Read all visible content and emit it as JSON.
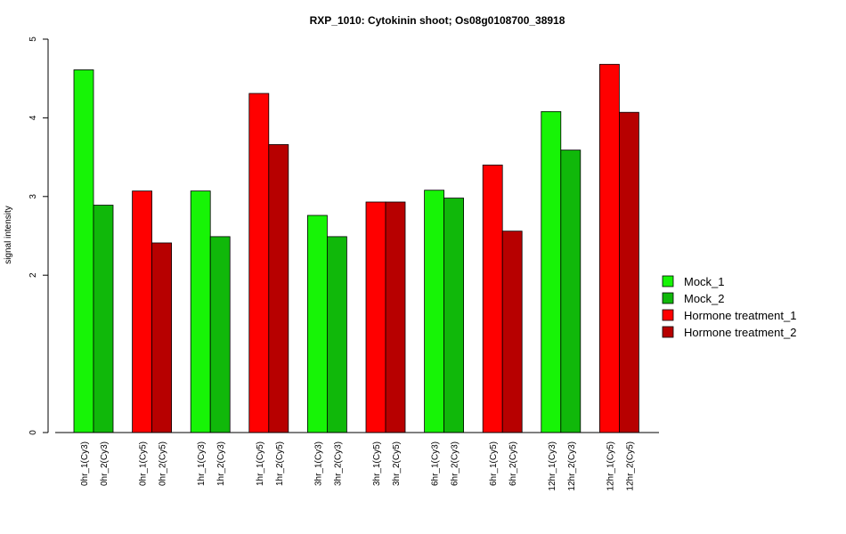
{
  "chart_data": {
    "type": "bar",
    "title": "RXP_1010: Cytokinin shoot; Os08g0108700_38918",
    "ylabel": "signal intensity",
    "xlabel": "",
    "ylim": [
      0,
      5
    ],
    "yticks": [
      "0",
      "2",
      "3",
      "4",
      "5"
    ],
    "grid": false,
    "legend_position": "right",
    "legend": [
      {
        "label": "Mock_1",
        "color": "#17f406"
      },
      {
        "label": "Mock_2",
        "color": "#10b80a"
      },
      {
        "label": "Hormone treatment_1",
        "color": "#ff0000"
      },
      {
        "label": "Hormone treatment_2",
        "color": "#b70000"
      }
    ],
    "groups": [
      {
        "bars": [
          {
            "label": "0hr_1(Cy3)",
            "value": 4.61,
            "color": "#17f406"
          },
          {
            "label": "0hr_2(Cy3)",
            "value": 2.89,
            "color": "#10b80a"
          }
        ]
      },
      {
        "bars": [
          {
            "label": "0hr_1(Cy5)",
            "value": 3.07,
            "color": "#ff0000"
          },
          {
            "label": "0hr_2(Cy5)",
            "value": 2.41,
            "color": "#b70000"
          }
        ]
      },
      {
        "bars": [
          {
            "label": "1hr_1(Cy3)",
            "value": 3.07,
            "color": "#17f406"
          },
          {
            "label": "1hr_2(Cy3)",
            "value": 2.49,
            "color": "#10b80a"
          }
        ]
      },
      {
        "bars": [
          {
            "label": "1hr_1(Cy5)",
            "value": 4.31,
            "color": "#ff0000"
          },
          {
            "label": "1hr_2(Cy5)",
            "value": 3.66,
            "color": "#b70000"
          }
        ]
      },
      {
        "bars": [
          {
            "label": "3hr_1(Cy3)",
            "value": 2.76,
            "color": "#17f406"
          },
          {
            "label": "3hr_2(Cy3)",
            "value": 2.49,
            "color": "#10b80a"
          }
        ]
      },
      {
        "bars": [
          {
            "label": "3hr_1(Cy5)",
            "value": 2.93,
            "color": "#ff0000"
          },
          {
            "label": "3hr_2(Cy5)",
            "value": 2.93,
            "color": "#b70000"
          }
        ]
      },
      {
        "bars": [
          {
            "label": "6hr_1(Cy3)",
            "value": 3.08,
            "color": "#17f406"
          },
          {
            "label": "6hr_2(Cy3)",
            "value": 2.98,
            "color": "#10b80a"
          }
        ]
      },
      {
        "bars": [
          {
            "label": "6hr_1(Cy5)",
            "value": 3.4,
            "color": "#ff0000"
          },
          {
            "label": "6hr_2(Cy5)",
            "value": 2.56,
            "color": "#b70000"
          }
        ]
      },
      {
        "bars": [
          {
            "label": "12hr_1(Cy3)",
            "value": 4.08,
            "color": "#17f406"
          },
          {
            "label": "12hr_2(Cy3)",
            "value": 3.59,
            "color": "#10b80a"
          }
        ]
      },
      {
        "bars": [
          {
            "label": "12hr_1(Cy5)",
            "value": 4.68,
            "color": "#ff0000"
          },
          {
            "label": "12hr_2(Cy5)",
            "value": 4.07,
            "color": "#b70000"
          }
        ]
      }
    ]
  }
}
